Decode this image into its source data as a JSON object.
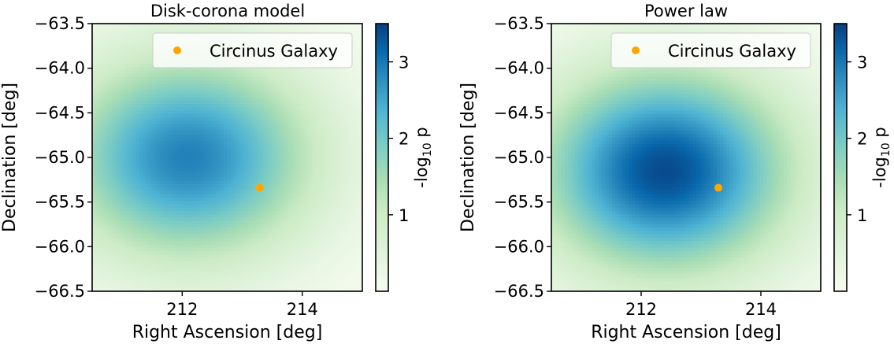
{
  "chart_data": [
    {
      "type": "heatmap",
      "title": "Disk-corona model",
      "xlabel": "Right Ascension [deg]",
      "ylabel": "Declination [deg]",
      "xlim": [
        210.5,
        215.0
      ],
      "ylim": [
        -66.5,
        -63.5
      ],
      "xticks": [
        212,
        214
      ],
      "xtick_labels": [
        "212",
        "214"
      ],
      "yticks": [
        -63.5,
        -64.0,
        -64.5,
        -65.0,
        -65.5,
        -66.0,
        -66.5
      ],
      "ytick_labels": [
        "−63.5",
        "−64.0",
        "−64.5",
        "−65.0",
        "−65.5",
        "−66.0",
        "−66.5"
      ],
      "hotspot": {
        "ra": 212.1,
        "dec": -65.0,
        "peak": 2.9
      },
      "colorbar": {
        "label": "-log10 p",
        "range": [
          0.0,
          3.5
        ],
        "ticks": [
          1,
          2,
          3
        ],
        "tick_labels": [
          "1",
          "2",
          "3"
        ],
        "colormap": "GnBu"
      },
      "points": [
        {
          "name": "Circinus Galaxy",
          "ra": 213.29,
          "dec": -65.34,
          "color": "#ffa500"
        }
      ],
      "legend": {
        "location": "upper right",
        "entries": [
          "Circinus Galaxy"
        ]
      }
    },
    {
      "type": "heatmap",
      "title": "Power law",
      "xlabel": "Right Ascension [deg]",
      "ylabel": "Declination [deg]",
      "xlim": [
        210.5,
        215.0
      ],
      "ylim": [
        -66.5,
        -63.5
      ],
      "xticks": [
        212,
        214
      ],
      "xtick_labels": [
        "212",
        "214"
      ],
      "yticks": [
        -63.5,
        -64.0,
        -64.5,
        -65.0,
        -65.5,
        -66.0,
        -66.5
      ],
      "ytick_labels": [
        "−63.5",
        "−64.0",
        "−64.5",
        "−65.0",
        "−65.5",
        "−66.0",
        "−66.5"
      ],
      "hotspot": {
        "ra": 212.4,
        "dec": -65.15,
        "peak": 3.4
      },
      "colorbar": {
        "label": "-log10 p",
        "range": [
          0.0,
          3.5
        ],
        "ticks": [
          1,
          2,
          3
        ],
        "tick_labels": [
          "1",
          "2",
          "3"
        ],
        "colormap": "GnBu"
      },
      "points": [
        {
          "name": "Circinus Galaxy",
          "ra": 213.29,
          "dec": -65.34,
          "color": "#ffa500"
        }
      ],
      "legend": {
        "location": "upper right",
        "entries": [
          "Circinus Galaxy"
        ]
      }
    }
  ]
}
